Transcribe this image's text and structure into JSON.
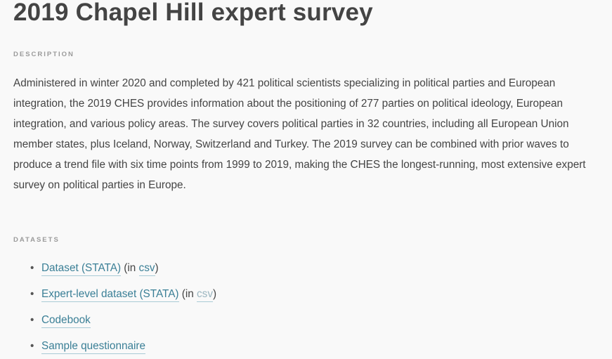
{
  "title": "2019 Chapel Hill expert survey",
  "description": {
    "label": "DESCRIPTION",
    "text": "Administered in winter 2020 and completed by 421 political scientists specializing in political parties and European integration, the 2019 CHES provides information about the positioning of 277 parties on political ideology, European integration, and various policy areas. The survey covers political parties in 32 countries, including all European Union member states, plus Iceland, Norway, Switzerland and Turkey. The 2019 survey can be combined with prior waves to produce a trend file with six time points from 1999 to 2019, making the CHES the longest-running, most extensive expert survey on political parties in Europe."
  },
  "datasets": {
    "label": "DATASETS",
    "items": [
      {
        "link": "Dataset (STATA)",
        "suffix_open": " (in ",
        "alt_link": "csv",
        "suffix_close": ")"
      },
      {
        "link": "Expert-level dataset (STATA)",
        "suffix_open": " (in ",
        "alt_link": "csv",
        "suffix_close": ")"
      },
      {
        "link": "Codebook"
      },
      {
        "link": "Sample questionnaire"
      }
    ],
    "bullet": "•"
  },
  "colors": {
    "link": "#3a7f96",
    "visited_link": "#9bb6c0",
    "text": "#444444"
  }
}
